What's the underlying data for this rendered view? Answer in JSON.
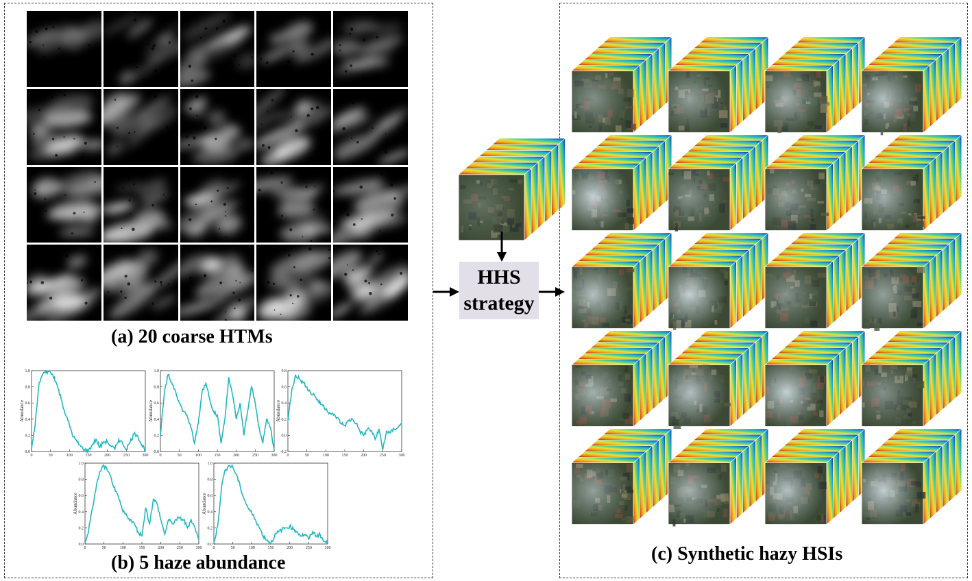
{
  "captions": {
    "htms": "(a) 20 coarse HTMs",
    "abundance": "(b) 5 haze abundance",
    "synthetic": "(c) Synthetic hazy HSIs"
  },
  "strategy_box": {
    "line1": "HHS",
    "line2": "strategy"
  },
  "htm_tile_count": 20,
  "cube_grid": {
    "rows": 5,
    "cols": 4
  },
  "plots": [
    {
      "ylabel": "Abundance",
      "xticks": [
        "0",
        "50",
        "100",
        "150",
        "200",
        "250",
        "300"
      ],
      "yticks": [
        "0.0",
        "0.2",
        "0.4",
        "0.6",
        "0.8",
        "1.0"
      ],
      "ylim": [
        0,
        1.0
      ]
    },
    {
      "ylabel": "Abundance",
      "xticks": [
        "0",
        "50",
        "100",
        "150",
        "200",
        "250",
        "300"
      ],
      "yticks": [
        "0.0",
        "0.2",
        "0.4",
        "0.6",
        "0.8",
        "1.0"
      ],
      "ylim": [
        0,
        1.0
      ]
    },
    {
      "ylabel": "Abundance",
      "xticks": [
        "0",
        "50",
        "100",
        "150",
        "200",
        "250",
        "300"
      ],
      "yticks": [
        "-0.2",
        "0.0",
        "0.2",
        "0.4",
        "0.6",
        "0.8"
      ],
      "ylim": [
        -0.2,
        0.8
      ]
    },
    {
      "ylabel": "Abundance",
      "xticks": [
        "0",
        "50",
        "100",
        "150",
        "200",
        "250",
        "300"
      ],
      "yticks": [
        "0.0",
        "0.2",
        "0.4",
        "0.6",
        "0.8",
        "1.0"
      ],
      "ylim": [
        0,
        1.0
      ]
    },
    {
      "ylabel": "Abundance",
      "xticks": [
        "0",
        "50",
        "100",
        "150",
        "200",
        "250",
        "300"
      ],
      "yticks": [
        "0.0",
        "0.2",
        "0.4",
        "0.6",
        "0.8",
        "1.0"
      ],
      "ylim": [
        0,
        1.0
      ]
    }
  ],
  "chart_data": [
    {
      "type": "line",
      "xlim": [
        0,
        300
      ],
      "ylim": [
        0,
        1.0
      ],
      "x": [
        0,
        10,
        20,
        30,
        40,
        50,
        60,
        70,
        80,
        90,
        100,
        110,
        120,
        130,
        140,
        150,
        160,
        170,
        180,
        190,
        200,
        210,
        220,
        230,
        240,
        250,
        260,
        270,
        280,
        290,
        300
      ],
      "values": [
        0.02,
        0.35,
        0.85,
        0.96,
        0.99,
        0.98,
        0.92,
        0.78,
        0.62,
        0.45,
        0.33,
        0.18,
        0.12,
        0.06,
        0.02,
        0.01,
        0.08,
        0.15,
        0.05,
        0.12,
        0.12,
        0.06,
        0.03,
        0.15,
        0.1,
        0.03,
        0.12,
        0.22,
        0.2,
        0.08,
        0.03
      ],
      "color": "#1fb8bf"
    },
    {
      "type": "line",
      "xlim": [
        0,
        300
      ],
      "ylim": [
        0,
        1.0
      ],
      "x": [
        0,
        10,
        20,
        30,
        40,
        50,
        60,
        70,
        80,
        90,
        100,
        110,
        120,
        130,
        140,
        150,
        160,
        170,
        180,
        190,
        200,
        210,
        220,
        230,
        240,
        250,
        260,
        270,
        280,
        290,
        300
      ],
      "values": [
        0.2,
        0.7,
        0.95,
        0.85,
        0.75,
        0.6,
        0.5,
        0.45,
        0.3,
        0.1,
        0.35,
        0.75,
        0.85,
        0.65,
        0.5,
        0.45,
        0.1,
        0.4,
        0.92,
        0.7,
        0.4,
        0.6,
        0.2,
        0.5,
        0.8,
        0.6,
        0.3,
        0.1,
        0.4,
        0.3,
        0.02
      ],
      "color": "#1fb8bf"
    },
    {
      "type": "line",
      "xlim": [
        0,
        300
      ],
      "ylim": [
        -0.2,
        0.8
      ],
      "x": [
        0,
        10,
        20,
        30,
        40,
        50,
        60,
        70,
        80,
        90,
        100,
        110,
        120,
        130,
        140,
        150,
        160,
        170,
        180,
        190,
        200,
        210,
        220,
        230,
        240,
        250,
        260,
        270,
        280,
        290,
        300
      ],
      "values": [
        0.18,
        0.55,
        0.75,
        0.7,
        0.65,
        0.6,
        0.52,
        0.5,
        0.42,
        0.38,
        0.33,
        0.28,
        0.25,
        0.22,
        0.15,
        0.12,
        0.18,
        0.2,
        0.15,
        0.05,
        0.0,
        0.08,
        0.06,
        -0.05,
        0.08,
        -0.18,
        0.05,
        0.03,
        0.08,
        0.1,
        0.14
      ],
      "color": "#1fb8bf"
    },
    {
      "type": "line",
      "xlim": [
        0,
        300
      ],
      "ylim": [
        0,
        1.0
      ],
      "x": [
        0,
        10,
        20,
        30,
        40,
        50,
        60,
        70,
        80,
        90,
        100,
        110,
        120,
        130,
        140,
        150,
        160,
        170,
        180,
        190,
        200,
        210,
        220,
        230,
        240,
        250,
        260,
        270,
        280,
        290,
        300
      ],
      "values": [
        0.01,
        0.18,
        0.45,
        0.72,
        0.9,
        0.97,
        0.9,
        0.8,
        0.65,
        0.55,
        0.4,
        0.35,
        0.3,
        0.25,
        0.15,
        0.1,
        0.45,
        0.25,
        0.55,
        0.5,
        0.3,
        0.12,
        0.3,
        0.25,
        0.3,
        0.32,
        0.3,
        0.2,
        0.3,
        0.2,
        0.05
      ],
      "color": "#1fb8bf"
    },
    {
      "type": "line",
      "xlim": [
        0,
        300
      ],
      "ylim": [
        0,
        1.0
      ],
      "x": [
        0,
        10,
        20,
        30,
        40,
        50,
        60,
        70,
        80,
        90,
        100,
        110,
        120,
        130,
        140,
        150,
        160,
        170,
        180,
        190,
        200,
        210,
        220,
        230,
        240,
        250,
        260,
        270,
        280,
        290,
        300
      ],
      "values": [
        0.01,
        0.22,
        0.7,
        0.92,
        0.97,
        0.95,
        0.85,
        0.7,
        0.55,
        0.45,
        0.38,
        0.3,
        0.2,
        0.1,
        0.05,
        0.01,
        0.1,
        0.15,
        0.18,
        0.2,
        0.22,
        0.18,
        0.15,
        0.1,
        0.12,
        0.06,
        0.15,
        0.1,
        0.12,
        0.03,
        0.01
      ],
      "color": "#1fb8bf"
    }
  ]
}
